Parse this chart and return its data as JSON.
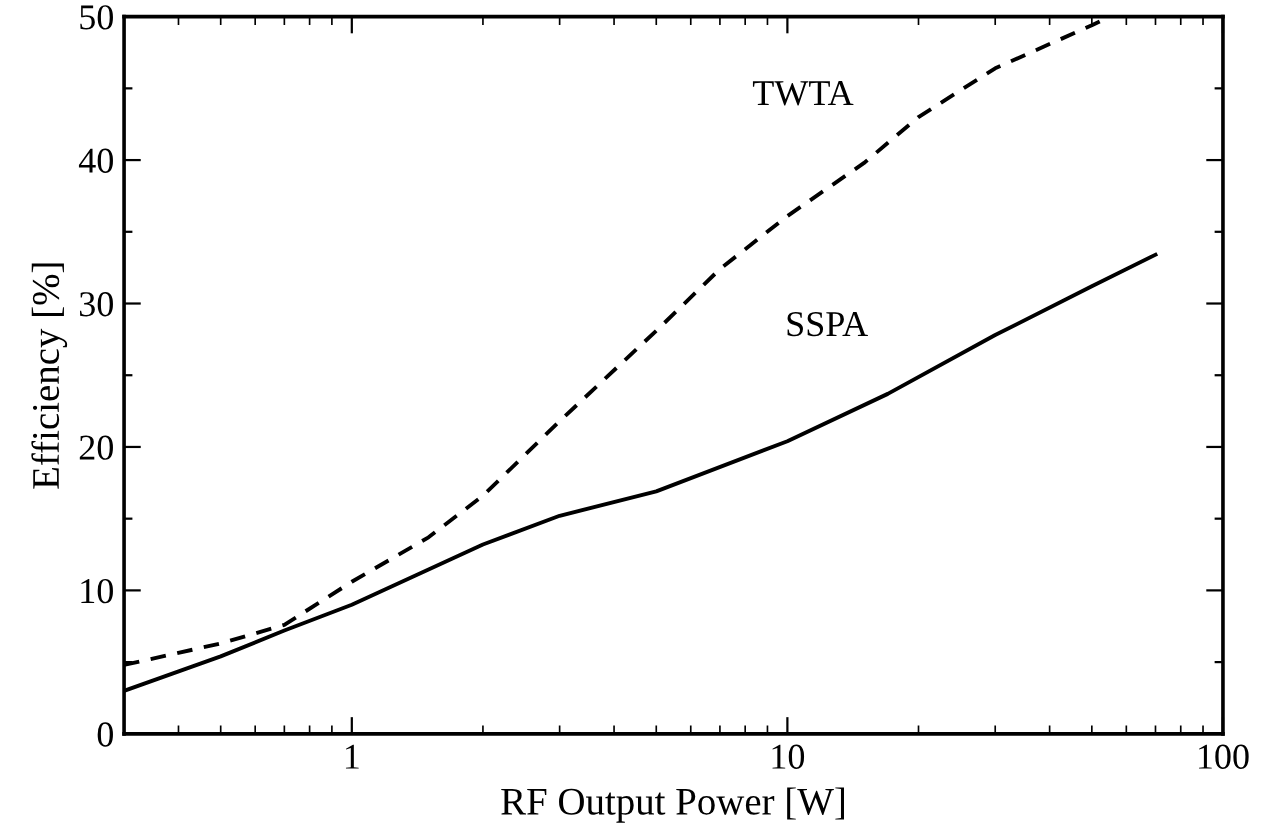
{
  "chart_data": {
    "type": "line",
    "xlabel": "RF Output Power [W]",
    "ylabel": "Efficiency [%]",
    "log": "x",
    "xlim": [
      0.3,
      100
    ],
    "xticks": [
      1,
      10,
      100
    ],
    "ylim": [
      0,
      50
    ],
    "yticks": [
      0,
      {
        "value": 5,
        "label": null
      },
      10,
      {
        "value": 15,
        "label": null
      },
      20,
      {
        "value": 25,
        "label": null
      },
      30,
      {
        "value": 35,
        "label": null
      },
      40,
      {
        "value": 45,
        "label": null
      },
      50
    ],
    "grid": false,
    "legend": false,
    "series": [
      {
        "name": "TWTA",
        "color": "#000000",
        "line_style": "dashed",
        "x": [
          0.3,
          0.5,
          0.7,
          1,
          1.5,
          2,
          3,
          5,
          7,
          10,
          15,
          20,
          30,
          50,
          55
        ],
        "values": [
          4.8,
          6.3,
          7.6,
          10.6,
          13.7,
          16.6,
          21.8,
          28.1,
          32.4,
          36.1,
          39.8,
          43.0,
          46.4,
          49.4,
          50
        ]
      },
      {
        "name": "SSPA",
        "color": "#000000",
        "line_style": "solid",
        "x": [
          0.3,
          0.5,
          0.7,
          1,
          2,
          3,
          5,
          10,
          17,
          30,
          50,
          70
        ],
        "values": [
          3.0,
          5.4,
          7.2,
          9.0,
          13.2,
          15.2,
          16.9,
          20.4,
          23.7,
          27.8,
          31.2,
          33.4
        ]
      }
    ]
  }
}
